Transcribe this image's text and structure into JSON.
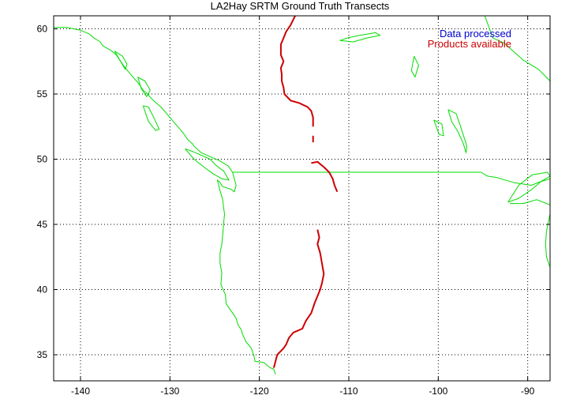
{
  "chart_data": {
    "type": "map",
    "title": "LA2Hay SRTM Ground Truth Transects",
    "xlim": [
      -143,
      -87.5
    ],
    "ylim": [
      33,
      61
    ],
    "x_ticks": [
      -140,
      -130,
      -120,
      -110,
      -100,
      -90
    ],
    "y_ticks": [
      35,
      40,
      45,
      50,
      55,
      60
    ],
    "x_tick_labels": [
      "-140",
      "-130",
      "-120",
      "-110",
      "-100",
      "-90"
    ],
    "y_tick_labels": [
      "35",
      "40",
      "45",
      "50",
      "55",
      "60"
    ],
    "grid": true,
    "legend_position": "top-right",
    "legend": [
      {
        "label": "Data processed",
        "color": "#0000cc"
      },
      {
        "label": "Products available",
        "color": "#cc0000"
      }
    ],
    "basemap_color": "#00dd00",
    "basemap": [
      {
        "name": "pacific-coast",
        "points": [
          [
            -143,
            60.1
          ],
          [
            -141.5,
            60.1
          ],
          [
            -140,
            59.9
          ],
          [
            -139,
            59.6
          ],
          [
            -138.5,
            59.3
          ],
          [
            -137.8,
            59.0
          ],
          [
            -137.5,
            58.7
          ],
          [
            -137,
            58.5
          ],
          [
            -136.5,
            58.3
          ],
          [
            -136,
            58.0
          ],
          [
            -135.5,
            57.5
          ],
          [
            -135,
            57.0
          ],
          [
            -134.5,
            56.6
          ],
          [
            -134,
            56.2
          ],
          [
            -133.5,
            55.8
          ],
          [
            -133,
            55.3
          ],
          [
            -132.5,
            55.0
          ],
          [
            -132,
            54.6
          ],
          [
            -131.5,
            54.3
          ],
          [
            -131,
            54.0
          ],
          [
            -130.5,
            53.6
          ],
          [
            -130,
            53.2
          ],
          [
            -129.5,
            52.8
          ],
          [
            -129,
            52.4
          ],
          [
            -128.5,
            52.0
          ],
          [
            -128,
            51.5
          ],
          [
            -127.5,
            51.2
          ],
          [
            -127.3,
            51.0
          ],
          [
            -126.5,
            50.5
          ],
          [
            -125.5,
            50.2
          ],
          [
            -124.5,
            49.9
          ],
          [
            -123.5,
            49.5
          ],
          [
            -123,
            49.0
          ],
          [
            -122.8,
            48.5
          ],
          [
            -122.6,
            48.0
          ],
          [
            -122.8,
            47.5
          ],
          [
            -123.2,
            47.7
          ],
          [
            -124.1,
            47.9
          ],
          [
            -124.5,
            48.3
          ],
          [
            -124.7,
            48.4
          ],
          [
            -124.4,
            47.6
          ],
          [
            -124.1,
            46.9
          ],
          [
            -124.0,
            46.3
          ],
          [
            -123.9,
            45.8
          ],
          [
            -124.0,
            45.0
          ],
          [
            -124.1,
            44.2
          ],
          [
            -124.2,
            43.5
          ],
          [
            -124.4,
            42.8
          ],
          [
            -124.4,
            42.0
          ],
          [
            -124.2,
            41.3
          ],
          [
            -124.3,
            40.4
          ],
          [
            -123.8,
            39.6
          ],
          [
            -123.7,
            38.9
          ],
          [
            -123.0,
            38.2
          ],
          [
            -122.6,
            37.8
          ],
          [
            -122.4,
            37.3
          ],
          [
            -122.0,
            36.9
          ],
          [
            -121.9,
            36.6
          ],
          [
            -121.5,
            36.0
          ],
          [
            -120.9,
            35.5
          ],
          [
            -120.6,
            34.9
          ],
          [
            -120.5,
            34.5
          ],
          [
            -119.5,
            34.4
          ],
          [
            -118.8,
            34.0
          ],
          [
            -118.4,
            33.9
          ],
          [
            -118.2,
            33.5
          ]
        ]
      },
      {
        "name": "vancouver-island",
        "points": [
          [
            -128.3,
            50.8
          ],
          [
            -127.5,
            50.6
          ],
          [
            -126.5,
            50.3
          ],
          [
            -125.5,
            50.0
          ],
          [
            -124.8,
            49.5
          ],
          [
            -124.0,
            49.1
          ],
          [
            -123.4,
            48.4
          ],
          [
            -124.2,
            48.5
          ],
          [
            -125.2,
            48.9
          ],
          [
            -126.2,
            49.4
          ],
          [
            -127.3,
            50.0
          ],
          [
            -128.3,
            50.8
          ]
        ]
      },
      {
        "name": "haida-gwaii",
        "points": [
          [
            -133.0,
            54.1
          ],
          [
            -132.4,
            54.0
          ],
          [
            -131.8,
            53.2
          ],
          [
            -131.2,
            52.3
          ],
          [
            -131.6,
            52.2
          ],
          [
            -132.4,
            52.9
          ],
          [
            -133.0,
            54.1
          ]
        ]
      },
      {
        "name": "alexander-archipelago",
        "points": [
          [
            -136.2,
            58.3
          ],
          [
            -135.3,
            57.9
          ],
          [
            -134.8,
            57.3
          ],
          [
            -135.0,
            56.9
          ],
          [
            -135.6,
            57.6
          ],
          [
            -136.2,
            58.3
          ]
        ]
      },
      {
        "name": "prince-of-wales-island",
        "points": [
          [
            -133.6,
            56.3
          ],
          [
            -132.8,
            56.0
          ],
          [
            -132.2,
            55.3
          ],
          [
            -132.6,
            54.8
          ],
          [
            -133.2,
            55.4
          ],
          [
            -133.6,
            56.3
          ]
        ]
      },
      {
        "name": "us-canada-border",
        "points": [
          [
            -123.0,
            49.0
          ],
          [
            -110,
            49.0
          ],
          [
            -100,
            49.0
          ],
          [
            -95.2,
            49.0
          ],
          [
            -94.5,
            48.7
          ],
          [
            -93.5,
            48.6
          ],
          [
            -91.5,
            48.2
          ],
          [
            -89.6,
            48.0
          ],
          [
            -88.5,
            48.3
          ],
          [
            -87.5,
            48.5
          ]
        ]
      },
      {
        "name": "lake-superior",
        "points": [
          [
            -92.2,
            46.7
          ],
          [
            -91.0,
            47.0
          ],
          [
            -89.5,
            47.7
          ],
          [
            -88.5,
            48.3
          ],
          [
            -87.5,
            48.7
          ],
          [
            -87.8,
            49.0
          ],
          [
            -89.5,
            48.8
          ],
          [
            -91.0,
            48.0
          ],
          [
            -92.2,
            46.7
          ]
        ]
      },
      {
        "name": "lake-superior-south",
        "points": [
          [
            -92.0,
            46.6
          ],
          [
            -90.5,
            46.6
          ],
          [
            -89.0,
            46.9
          ],
          [
            -87.5,
            46.5
          ]
        ]
      },
      {
        "name": "lake-michigan",
        "points": [
          [
            -87.5,
            45.8
          ],
          [
            -87.9,
            44.5
          ],
          [
            -88.0,
            43.5
          ],
          [
            -87.9,
            42.5
          ],
          [
            -87.5,
            41.7
          ]
        ]
      },
      {
        "name": "lake-winnipeg",
        "points": [
          [
            -98.9,
            53.8
          ],
          [
            -98.0,
            53.5
          ],
          [
            -97.5,
            52.5
          ],
          [
            -96.8,
            51.0
          ],
          [
            -96.9,
            50.5
          ],
          [
            -97.2,
            51.2
          ],
          [
            -97.8,
            52.1
          ],
          [
            -98.5,
            52.9
          ],
          [
            -98.9,
            53.8
          ]
        ]
      },
      {
        "name": "lake-winnipegosis",
        "points": [
          [
            -100.5,
            53.0
          ],
          [
            -99.6,
            52.7
          ],
          [
            -99.4,
            51.8
          ],
          [
            -99.9,
            51.9
          ],
          [
            -100.5,
            53.0
          ]
        ]
      },
      {
        "name": "reindeer-lake",
        "points": [
          [
            -102.7,
            57.9
          ],
          [
            -102.2,
            57.2
          ],
          [
            -102.6,
            56.3
          ],
          [
            -103.0,
            56.8
          ],
          [
            -102.7,
            57.9
          ]
        ]
      },
      {
        "name": "lake-athabasca",
        "points": [
          [
            -111.0,
            59.1
          ],
          [
            -109.5,
            59.0
          ],
          [
            -108.0,
            59.3
          ],
          [
            -106.5,
            59.5
          ],
          [
            -107.0,
            59.7
          ],
          [
            -108.8,
            59.5
          ],
          [
            -110.2,
            59.3
          ],
          [
            -111.0,
            59.1
          ]
        ]
      },
      {
        "name": "hudson-bay-coast",
        "points": [
          [
            -94.8,
            61
          ],
          [
            -93.9,
            59.3
          ],
          [
            -92.6,
            58.9
          ],
          [
            -90.5,
            57.6
          ],
          [
            -88.8,
            56.9
          ],
          [
            -87.5,
            56.0
          ]
        ]
      }
    ],
    "transect_color": "#cc0000",
    "transects": [
      {
        "name": "northern-bc-transect",
        "points": [
          [
            -116.0,
            61.0
          ],
          [
            -116.5,
            60.3
          ],
          [
            -117.0,
            59.8
          ],
          [
            -117.3,
            59.3
          ],
          [
            -117.6,
            58.8
          ],
          [
            -117.6,
            58.0
          ],
          [
            -117.3,
            57.5
          ],
          [
            -117.6,
            57.0
          ],
          [
            -117.5,
            56.5
          ],
          [
            -117.5,
            56.0
          ],
          [
            -117.3,
            55.5
          ],
          [
            -117.2,
            55.0
          ],
          [
            -116.5,
            54.5
          ],
          [
            -115.5,
            54.3
          ],
          [
            -114.6,
            54.0
          ],
          [
            -114.2,
            53.7
          ],
          [
            -114.0,
            53.2
          ],
          [
            -114.0,
            52.5
          ]
        ]
      },
      {
        "name": "alberta-fragment",
        "points": [
          [
            -114.0,
            51.8
          ],
          [
            -114.0,
            51.3
          ]
        ]
      },
      {
        "name": "montana-transect",
        "points": [
          [
            -114.2,
            49.7
          ],
          [
            -113.5,
            49.8
          ],
          [
            -112.8,
            49.4
          ],
          [
            -112.2,
            49.0
          ],
          [
            -111.8,
            48.5
          ],
          [
            -111.6,
            48.0
          ],
          [
            -111.3,
            47.5
          ]
        ]
      },
      {
        "name": "california-nevada-transect",
        "points": [
          [
            -113.5,
            44.6
          ],
          [
            -113.3,
            44.0
          ],
          [
            -113.5,
            43.5
          ],
          [
            -113.2,
            42.8
          ],
          [
            -113.0,
            42.0
          ],
          [
            -112.8,
            41.2
          ],
          [
            -113.0,
            40.5
          ],
          [
            -113.2,
            40.0
          ],
          [
            -113.5,
            39.5
          ],
          [
            -113.8,
            39.0
          ],
          [
            -114.2,
            38.2
          ],
          [
            -114.8,
            37.6
          ],
          [
            -115.2,
            37.0
          ],
          [
            -116.2,
            36.7
          ],
          [
            -116.7,
            36.3
          ],
          [
            -117.0,
            35.8
          ],
          [
            -117.3,
            35.5
          ],
          [
            -118.0,
            35.0
          ],
          [
            -118.2,
            34.5
          ],
          [
            -118.3,
            34.2
          ],
          [
            -118.4,
            34.0
          ]
        ]
      }
    ]
  }
}
